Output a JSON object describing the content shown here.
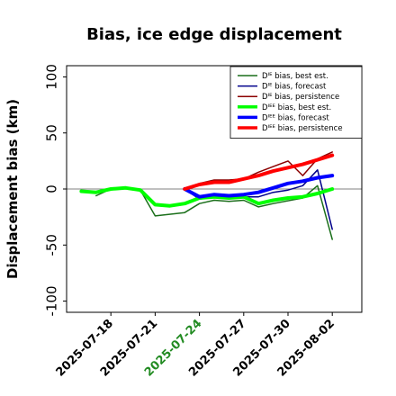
{
  "chart_data": {
    "type": "line",
    "title": "Bias, ice edge displacement",
    "xlabel": "",
    "ylabel": "Displacement bias (km)",
    "ylim": [
      -110,
      110
    ],
    "yticks": [
      -100,
      -50,
      0,
      50,
      100
    ],
    "xlim": [
      "2025-07-15",
      "2025-08-04"
    ],
    "xticks": [
      {
        "date": "2025-07-18",
        "label": "2025-07-18",
        "color": "#000000"
      },
      {
        "date": "2025-07-21",
        "label": "2025-07-21",
        "color": "#000000"
      },
      {
        "date": "2025-07-24",
        "label": "2025-07-24",
        "color": "#228b22"
      },
      {
        "date": "2025-07-27",
        "label": "2025-07-27",
        "color": "#000000"
      },
      {
        "date": "2025-07-30",
        "label": "2025-07-30",
        "color": "#000000"
      },
      {
        "date": "2025-08-02",
        "label": "2025-08-02",
        "color": "#000000"
      }
    ],
    "zero_line": true,
    "grid": false,
    "legend_position": "top-right",
    "series": [
      {
        "name": "Dᴵᴱ bias, best est.",
        "color": "#1a6f1a",
        "width": 1.5,
        "x": [
          "2025-07-17",
          "2025-07-18",
          "2025-07-19",
          "2025-07-20",
          "2025-07-21",
          "2025-07-23",
          "2025-07-24",
          "2025-07-25",
          "2025-07-26",
          "2025-07-27",
          "2025-07-28",
          "2025-07-29",
          "2025-07-31",
          "2025-08-01",
          "2025-08-02"
        ],
        "y": [
          -6,
          0,
          1,
          -1,
          -24,
          -21,
          -13,
          -10,
          -11,
          -10,
          -16,
          -13,
          -8,
          3,
          -45
        ]
      },
      {
        "name": "Dᴵᴱ bias, forecast",
        "color": "#00008b",
        "width": 1.5,
        "x": [
          "2025-07-23",
          "2025-07-24",
          "2025-07-25",
          "2025-07-26",
          "2025-07-27",
          "2025-07-28",
          "2025-07-29",
          "2025-07-30",
          "2025-07-31",
          "2025-08-01",
          "2025-08-02"
        ],
        "y": [
          0,
          -9,
          -7,
          -8,
          -7,
          -7,
          -3,
          -1,
          3,
          17,
          -36
        ]
      },
      {
        "name": "Dᴵᴱ bias, persistence",
        "color": "#8b0000",
        "width": 1.5,
        "x": [
          "2025-07-23",
          "2025-07-24",
          "2025-07-25",
          "2025-07-26",
          "2025-07-27",
          "2025-07-28",
          "2025-07-29",
          "2025-07-30",
          "2025-07-31",
          "2025-08-01",
          "2025-08-02"
        ],
        "y": [
          0,
          5,
          8,
          8,
          9,
          15,
          20,
          25,
          12,
          27,
          33
        ]
      },
      {
        "name": "Dᴵᴱᴱ bias, best est.",
        "color": "#00ff00",
        "width": 4,
        "x": [
          "2025-07-16",
          "2025-07-17",
          "2025-07-18",
          "2025-07-19",
          "2025-07-20",
          "2025-07-21",
          "2025-07-22",
          "2025-07-23",
          "2025-07-24",
          "2025-07-25",
          "2025-07-26",
          "2025-07-27",
          "2025-07-28",
          "2025-07-29",
          "2025-07-30",
          "2025-07-31",
          "2025-08-01",
          "2025-08-02"
        ],
        "y": [
          -2,
          -3,
          0,
          1,
          -1,
          -14,
          -15,
          -13,
          -8,
          -7,
          -8,
          -7,
          -13,
          -10,
          -8,
          -7,
          -4,
          0
        ]
      },
      {
        "name": "Dᴵᴱᴱ bias, forecast",
        "color": "#0000ff",
        "width": 4,
        "x": [
          "2025-07-23",
          "2025-07-24",
          "2025-07-25",
          "2025-07-26",
          "2025-07-27",
          "2025-07-28",
          "2025-07-29",
          "2025-07-30",
          "2025-07-31",
          "2025-08-01",
          "2025-08-02"
        ],
        "y": [
          0,
          -7,
          -5,
          -6,
          -5,
          -3,
          1,
          5,
          7,
          10,
          12
        ]
      },
      {
        "name": "Dᴵᴱᴱ bias, persistence",
        "color": "#ff0000",
        "width": 4,
        "x": [
          "2025-07-23",
          "2025-07-24",
          "2025-07-25",
          "2025-07-26",
          "2025-07-27",
          "2025-07-28",
          "2025-07-29",
          "2025-07-30",
          "2025-07-31",
          "2025-08-01",
          "2025-08-02"
        ],
        "y": [
          0,
          4,
          6,
          6,
          9,
          12,
          16,
          19,
          22,
          26,
          30
        ]
      }
    ]
  }
}
